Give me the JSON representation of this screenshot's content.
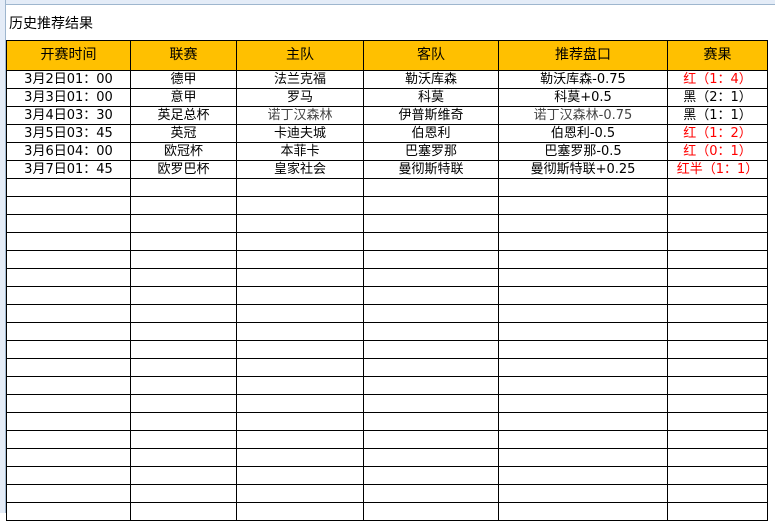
{
  "title": "历史推荐结果",
  "headers": [
    "开赛时间",
    "联赛",
    "主队",
    "客队",
    "推荐盘口",
    "赛果"
  ],
  "rows": [
    {
      "time": "3月2日01：00",
      "league": "德甲",
      "home": "法兰克福",
      "away": "勒沃库森",
      "pick": "勒沃库森-0.75",
      "result": "红（1：4）",
      "result_color": "#ff0000"
    },
    {
      "time": "3月3日01：00",
      "league": "意甲",
      "home": "罗马",
      "away": "科莫",
      "pick": "科莫+0.5",
      "result": "黑（2：1）",
      "result_color": "#000000"
    },
    {
      "time": "3月4日03：30",
      "league": "英足总杯",
      "home": "诺丁汉森林",
      "away": "伊普斯维奇",
      "pick": "诺丁汉森林-0.75",
      "result": "黑（1：1）",
      "result_color": "#000000"
    },
    {
      "time": "3月5日03：45",
      "league": "英冠",
      "home": "卡迪夫城",
      "away": "伯恩利",
      "pick": "伯恩利-0.5",
      "result": "红（1：2）",
      "result_color": "#ff0000"
    },
    {
      "time": "3月6日04：00",
      "league": "欧冠杯",
      "home": "本菲卡",
      "away": "巴塞罗那",
      "pick": "巴塞罗那-0.5",
      "result": "红（0：1）",
      "result_color": "#ff0000"
    },
    {
      "time": "3月7日01：45",
      "league": "欧罗巴杯",
      "home": "皇家社会",
      "away": "曼彻斯特联",
      "pick": "曼彻斯特联+0.25",
      "result": "红半（1：1）",
      "result_color": "#ff0000"
    }
  ],
  "header_color": "#ffc000"
}
